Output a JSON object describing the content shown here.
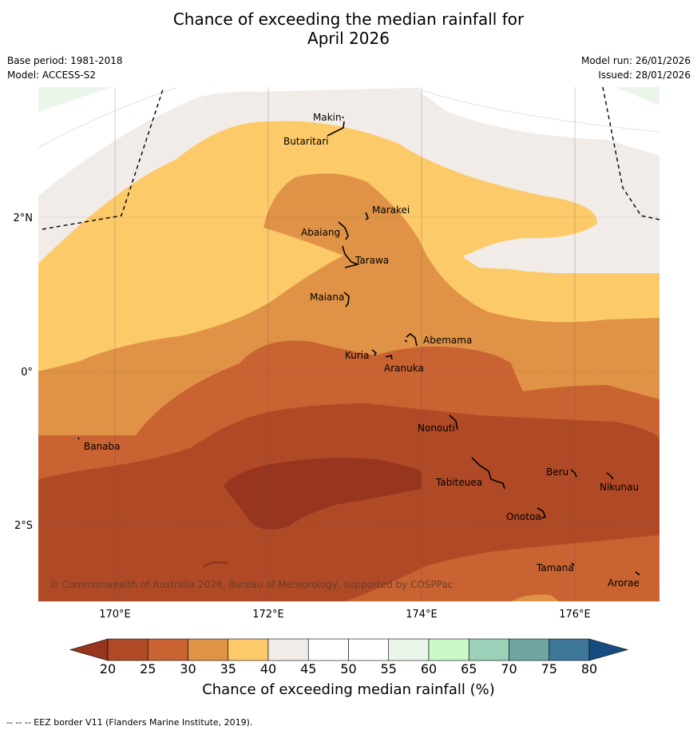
{
  "title_line1": "Chance of exceeding the median rainfall for",
  "title_line2": "April 2026",
  "meta": {
    "base_period": "Base period: 1981-2018",
    "model": "Model: ACCESS-S2",
    "model_run": "Model run: 26/01/2026",
    "issued": "Issued: 28/01/2026"
  },
  "map": {
    "lat_labels": [
      "2°N",
      "0°",
      "2°S"
    ],
    "lon_labels": [
      "170°E",
      "172°E",
      "174°E",
      "176°E"
    ],
    "places": [
      "Makin",
      "Butaritari",
      "Marakei",
      "Abaiang",
      "Tarawa",
      "Maiana",
      "Abemama",
      "Kuria",
      "Aranuka",
      "Banaba",
      "Nonouti",
      "Beru",
      "Nikunau",
      "Tabiteuea",
      "Onotoa",
      "Tamana",
      "Arorae"
    ],
    "copyright": "© Commonwealth of Australia 2026, Bureau of Meteorology, supported by COSPPac"
  },
  "colorbar": {
    "ticks": [
      "20",
      "25",
      "30",
      "35",
      "40",
      "45",
      "50",
      "55",
      "60",
      "65",
      "70",
      "75",
      "80"
    ],
    "colors": [
      "#98351f",
      "#b04a26",
      "#c96332",
      "#e09346",
      "#fdca6a",
      "#f1ece7",
      "#ffffff",
      "#ffffff",
      "#eaf6ea",
      "#cbf9c7",
      "#9bd1b9",
      "#6fa6a3",
      "#3e7699",
      "#154c80"
    ],
    "label": "Chance of exceeding median rainfall (%)"
  },
  "footnote": "--  --  -- EEZ border V11 (Flanders Marine Institute, 2019)."
}
